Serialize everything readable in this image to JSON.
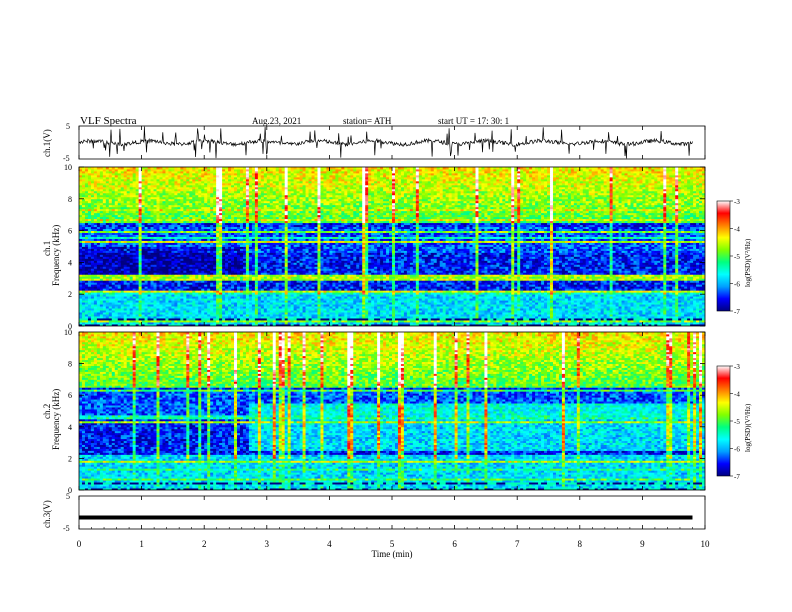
{
  "header": {
    "title": "VLF Spectra",
    "date": "Aug.23, 2021",
    "station": "station= ATH",
    "start_ut": "start  UT  =    17: 30: 1"
  },
  "chart_data": [
    {
      "type": "line",
      "panel": "ch1-waveform",
      "ylabel": "ch.1(V)",
      "ylim": [
        -5,
        5
      ],
      "yticks": [
        "5",
        "-5"
      ],
      "x_range_min": [
        0,
        9.8
      ],
      "baseline_value": 0,
      "color": "#000000"
    },
    {
      "type": "heatmap",
      "panel": "ch1-spectrogram",
      "ylabel_channel": "ch.1",
      "ylabel": "Frequency  (kHz)",
      "ylim": [
        0,
        10
      ],
      "yticks": [
        "0",
        "2",
        "4",
        "6",
        "8",
        "10"
      ],
      "colorbar": {
        "label": "log(PSD)(V²/Hz)",
        "range": [
          -7,
          -3
        ],
        "ticks": [
          "-3",
          "-4",
          "-5",
          "-6",
          "-7"
        ],
        "colors": [
          "#000080",
          "#0000ff",
          "#00a0ff",
          "#00ffff",
          "#00ff80",
          "#80ff00",
          "#ffff00",
          "#ff8000",
          "#ff0000",
          "#ffffff"
        ]
      }
    },
    {
      "type": "heatmap",
      "panel": "ch2-spectrogram",
      "ylabel_channel": "ch.2",
      "ylabel": "Frequency  (kHz)",
      "ylim": [
        0,
        10
      ],
      "yticks": [
        "0",
        "2",
        "4",
        "6",
        "8",
        "10"
      ],
      "colorbar": {
        "label": "log(PSD)(V²/Hz)",
        "range": [
          -7,
          -3
        ],
        "ticks": [
          "-3",
          "-4",
          "-5",
          "-6",
          "-7"
        ]
      }
    },
    {
      "type": "line",
      "panel": "ch3-waveform",
      "ylabel": "ch.3(V)",
      "ylim": [
        -5,
        5
      ],
      "yticks": [
        "5",
        "-5"
      ],
      "x_range_min": [
        0,
        9.8
      ],
      "constant_value": -1.5,
      "color": "#000000"
    }
  ],
  "x_axis": {
    "label": "Time  (min)",
    "range": [
      0,
      10
    ],
    "ticks": [
      "0",
      "1",
      "2",
      "3",
      "4",
      "5",
      "6",
      "7",
      "8",
      "9",
      "10"
    ]
  }
}
